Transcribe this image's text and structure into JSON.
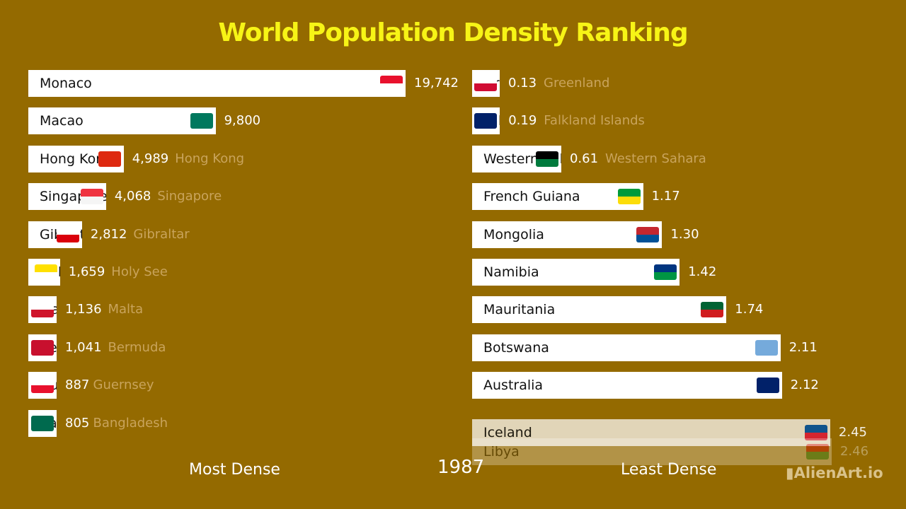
{
  "title": "World Population Density Ranking",
  "year": "1987",
  "left_label": "Most Dense",
  "right_label": "Least Dense",
  "watermark": "AlienArt.io",
  "colors": {
    "background": "#946a00",
    "title": "#f7f416",
    "bar": "#ffffff"
  },
  "chart_data": [
    {
      "type": "bar",
      "orientation": "horizontal",
      "xlabel": "Most Dense",
      "categories": [
        "Monaco",
        "Macao",
        "Hong Kong",
        "Singapore",
        "Gibraltar",
        "Holy See",
        "Malta",
        "Bermuda",
        "Guernsey",
        "Bangladesh"
      ],
      "values": [
        19742,
        9800,
        4989,
        4068,
        2812,
        1659,
        1136,
        1041,
        887,
        805
      ],
      "value_labels": [
        "19,742",
        "9,800",
        "4,989",
        "4,068",
        "2,812",
        "1,659",
        "1,136",
        "1,041",
        "887",
        "805"
      ],
      "flags": [
        [
          "#e8112d",
          "#ffffff"
        ],
        [
          "#00785e",
          "#00785e"
        ],
        [
          "#de2910",
          "#de2910"
        ],
        [
          "#ef3340",
          "#f5f5f5"
        ],
        [
          "#ffffff",
          "#da000c"
        ],
        [
          "#ffe000",
          "#ffffff"
        ],
        [
          "#ffffff",
          "#cf142b"
        ],
        [
          "#c8102e",
          "#c8102e"
        ],
        [
          "#ffffff",
          "#e8112d"
        ],
        [
          "#006a4e",
          "#006a4e"
        ]
      ]
    },
    {
      "type": "bar",
      "orientation": "horizontal",
      "xlabel": "Least Dense",
      "categories": [
        "Greenland",
        "Falkland Islands",
        "Western Sahara",
        "French Guiana",
        "Mongolia",
        "Namibia",
        "Mauritania",
        "Botswana",
        "Australia",
        "Iceland",
        "Libya"
      ],
      "values": [
        0.13,
        0.19,
        0.61,
        1.17,
        1.3,
        1.42,
        1.74,
        2.11,
        2.12,
        2.45,
        2.46
      ],
      "value_labels": [
        "0.13",
        "0.19",
        "0.61",
        "1.17",
        "1.30",
        "1.42",
        "1.74",
        "2.11",
        "2.12",
        "2.45",
        "2.46"
      ],
      "flags": [
        [
          "#ffffff",
          "#d00c33"
        ],
        [
          "#012169",
          "#012169"
        ],
        [
          "#000000",
          "#007a3d"
        ],
        [
          "#009a3b",
          "#fcdd09"
        ],
        [
          "#c4272f",
          "#015197"
        ],
        [
          "#003580",
          "#009543"
        ],
        [
          "#006233",
          "#d01c1f"
        ],
        [
          "#75aadb",
          "#75aadb"
        ],
        [
          "#012169",
          "#012169"
        ],
        [
          "#02529c",
          "#dc1e35"
        ],
        [
          "#e70013",
          "#239e46"
        ]
      ]
    }
  ]
}
